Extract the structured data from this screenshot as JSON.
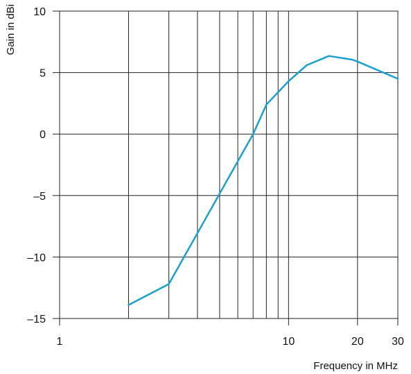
{
  "chart_data": {
    "type": "line",
    "title": "",
    "xlabel": "Frequency in MHz",
    "ylabel": "Gain in dBi",
    "x_scale": "log",
    "xlim": [
      1,
      30
    ],
    "ylim": [
      -15,
      10
    ],
    "grid": true,
    "x_gridlines": [
      1,
      2,
      3,
      4,
      5,
      6,
      7,
      8,
      9,
      10,
      20,
      30
    ],
    "x_ticks": [
      {
        "value": 1,
        "label": "1"
      },
      {
        "value": 10,
        "label": "10"
      },
      {
        "value": 20,
        "label": "20"
      },
      {
        "value": 30,
        "label": "30"
      }
    ],
    "y_ticks": [
      {
        "value": 10,
        "label": "10"
      },
      {
        "value": 5,
        "label": "5"
      },
      {
        "value": 0,
        "label": "0"
      },
      {
        "value": -5,
        "label": "–5"
      },
      {
        "value": -10,
        "label": "–10"
      },
      {
        "value": -15,
        "label": "–15"
      }
    ],
    "series": [
      {
        "color": "#1a9fd4",
        "x": [
          2.0,
          3.0,
          7.0,
          8.0,
          10.0,
          12.0,
          15.0,
          19.0,
          20.0,
          30.0
        ],
        "y": [
          -13.9,
          -12.2,
          0.0,
          2.4,
          4.3,
          5.6,
          6.35,
          6.05,
          5.9,
          4.5
        ]
      }
    ]
  }
}
